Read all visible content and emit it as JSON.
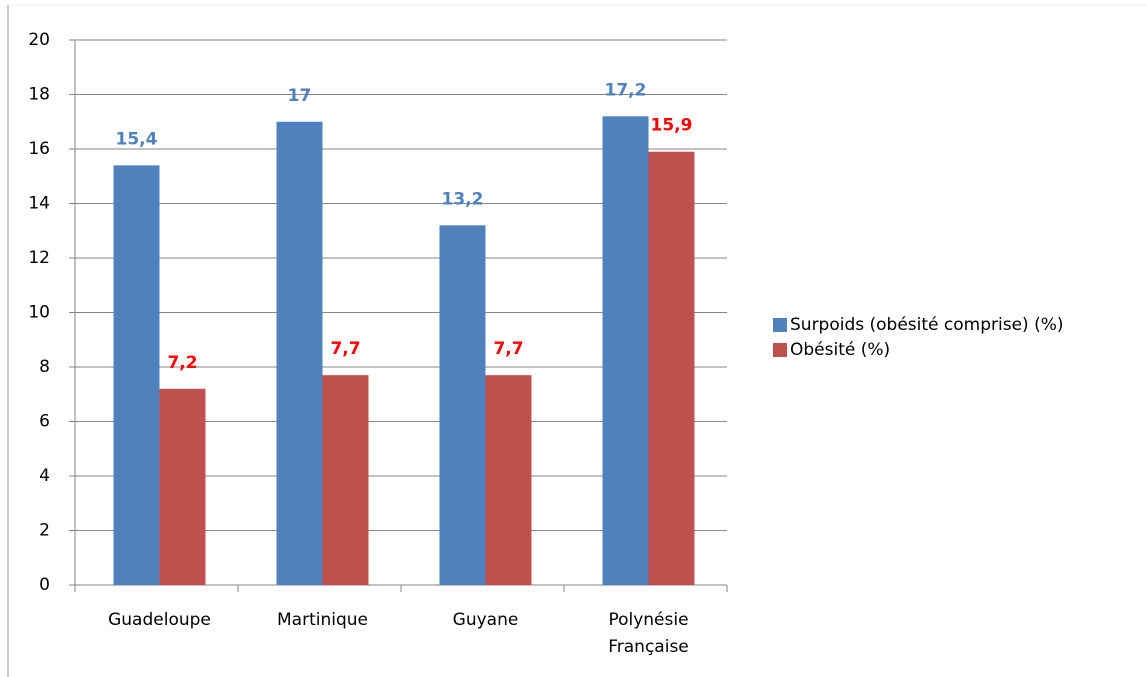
{
  "chart_data": {
    "type": "bar",
    "categories": [
      "Guadeloupe",
      "Martinique",
      "Guyane",
      "Polynésie Française"
    ],
    "series": [
      {
        "name": "Surpoids (obésité comprise) (%)",
        "color": "#4f81bd",
        "label_color": "#4f81bd",
        "values": [
          15.4,
          17,
          13.2,
          17.2
        ],
        "value_labels": [
          "15,4",
          "17",
          "13,2",
          "17,2"
        ]
      },
      {
        "name": "Obésité (%)",
        "color": "#c0504d",
        "label_color": "#ff0000",
        "values": [
          7.2,
          7.7,
          7.7,
          15.9
        ],
        "value_labels": [
          "7,2",
          "7,7",
          "7,7",
          "15,9"
        ]
      }
    ],
    "ylim": [
      0,
      20
    ],
    "yticks": [
      0,
      2,
      4,
      6,
      8,
      10,
      12,
      14,
      16,
      18,
      20
    ],
    "grid": true,
    "legend": "right"
  }
}
